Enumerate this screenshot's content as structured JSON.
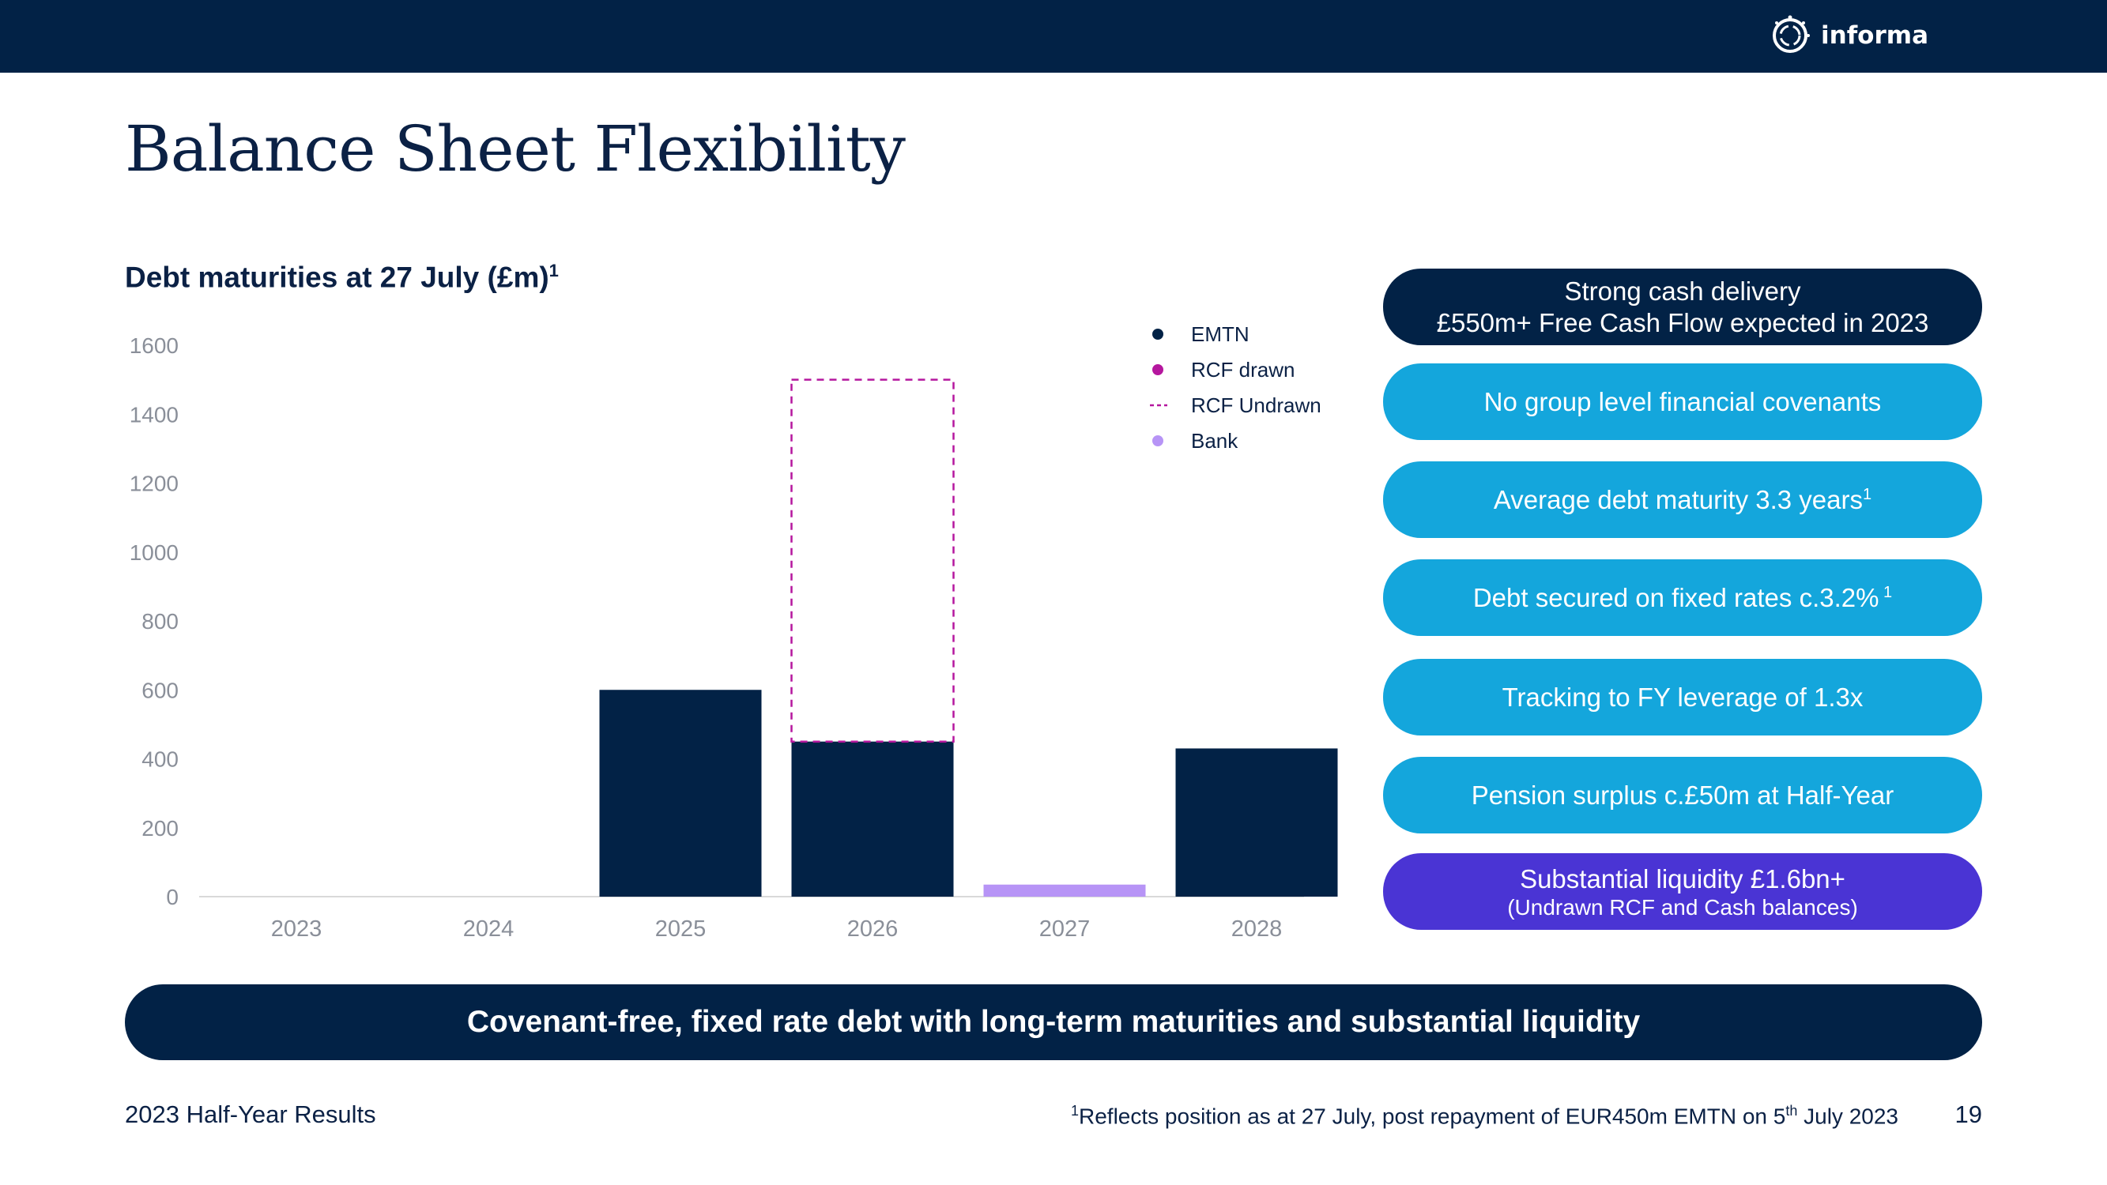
{
  "header": {
    "logo_text": "informa",
    "bar_color": "#022246"
  },
  "title": "Balance Sheet Flexibility",
  "chart_heading": {
    "text": "Debt maturities at 27 July (£m)",
    "sup": "1"
  },
  "chart_data": {
    "type": "bar",
    "stacked": true,
    "categories": [
      "2023",
      "2024",
      "2025",
      "2026",
      "2027",
      "2028"
    ],
    "series": [
      {
        "name": "EMTN",
        "color": "#022246",
        "style": "solid",
        "values": [
          0,
          0,
          600,
          450,
          0,
          430
        ]
      },
      {
        "name": "RCF drawn",
        "color": "#b5179e",
        "style": "solid",
        "values": [
          0,
          0,
          0,
          0,
          0,
          0
        ]
      },
      {
        "name": "RCF Undrawn",
        "color": "#b5179e",
        "style": "dashed",
        "values": [
          0,
          0,
          0,
          1050,
          0,
          0
        ]
      },
      {
        "name": "Bank",
        "color": "#b794f6",
        "style": "solid",
        "values": [
          0,
          0,
          0,
          0,
          35,
          0
        ]
      }
    ],
    "ylim": [
      0,
      1600
    ],
    "yticks": [
      0,
      200,
      400,
      600,
      800,
      1000,
      1200,
      1400,
      1600
    ],
    "grid": false,
    "legend_position": "top-right"
  },
  "highlights": [
    {
      "line1": "Strong cash delivery",
      "line2": "£550m+ Free Cash Flow expected in 2023",
      "color": "#022246"
    },
    {
      "text": "No group level financial covenants",
      "color": "#14a6dc"
    },
    {
      "text": "Average debt maturity 3.3 years",
      "sup": "1",
      "color": "#14a6dc"
    },
    {
      "text": "Debt secured on fixed rates c.3.2%",
      "sup": " 1",
      "color": "#14a6dc"
    },
    {
      "text": "Tracking to FY leverage of 1.3x",
      "color": "#14a6dc"
    },
    {
      "text": "Pension surplus c.£50m at Half-Year",
      "color": "#14a6dc"
    },
    {
      "line1": "Substantial liquidity £1.6bn+",
      "line2": "(Undrawn RCF and Cash balances)",
      "color": "#4a34d4"
    }
  ],
  "banner": "Covenant-free, fixed rate debt with long-term maturities and substantial liquidity",
  "footer": {
    "left": "2023 Half-Year Results",
    "footnote_sup": "1",
    "footnote_a": "Reflects position as at 27 July, post repayment of EUR450m EMTN on 5",
    "footnote_sup2": "th",
    "footnote_b": " July 2023",
    "page": "19"
  }
}
